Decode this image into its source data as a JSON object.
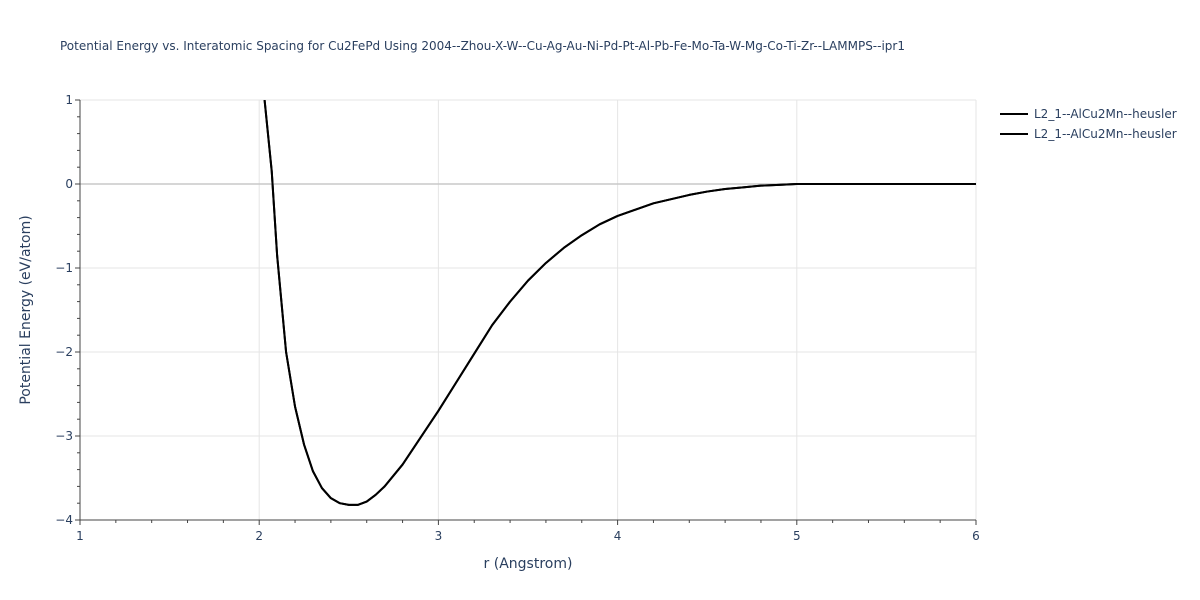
{
  "chart_data": {
    "type": "line",
    "title": "Potential Energy vs. Interatomic Spacing for Cu2FePd Using 2004--Zhou-X-W--Cu-Ag-Au-Ni-Pd-Pt-Al-Pb-Fe-Mo-Ta-W-Mg-Co-Ti-Zr--LAMMPS--ipr1",
    "xlabel": "r (Angstrom)",
    "ylabel": "Potential Energy (eV/atom)",
    "xlim": [
      1,
      6
    ],
    "ylim": [
      -4,
      1
    ],
    "x_ticks": [
      "1",
      "2",
      "3",
      "4",
      "5",
      "6"
    ],
    "y_ticks": [
      "1",
      "0",
      "−1",
      "−2",
      "−3",
      "−4"
    ],
    "x_tick_values": [
      1,
      2,
      3,
      4,
      5,
      6
    ],
    "y_tick_values": [
      1,
      0,
      -1,
      -2,
      -3,
      -4
    ],
    "grid": true,
    "legend_position": "top-right",
    "series": [
      {
        "name": "L2_1--AlCu2Mn--heusler",
        "color": "#000000",
        "x": [
          2.03,
          2.07,
          2.1,
          2.15,
          2.2,
          2.25,
          2.3,
          2.35,
          2.4,
          2.45,
          2.5,
          2.55,
          2.6,
          2.65,
          2.7,
          2.8,
          2.9,
          3.0,
          3.1,
          3.2,
          3.3,
          3.4,
          3.5,
          3.6,
          3.7,
          3.8,
          3.9,
          4.0,
          4.2,
          4.4,
          4.5,
          4.6,
          4.7,
          4.8,
          4.9,
          5.0,
          5.2,
          5.5,
          6.0
        ],
        "y": [
          1.0,
          0.15,
          -0.85,
          -2.0,
          -2.65,
          -3.1,
          -3.42,
          -3.62,
          -3.74,
          -3.8,
          -3.82,
          -3.82,
          -3.78,
          -3.7,
          -3.6,
          -3.34,
          -3.02,
          -2.7,
          -2.36,
          -2.02,
          -1.68,
          -1.4,
          -1.15,
          -0.94,
          -0.76,
          -0.61,
          -0.48,
          -0.38,
          -0.23,
          -0.13,
          -0.09,
          -0.06,
          -0.04,
          -0.02,
          -0.01,
          0.0,
          0.0,
          0.0,
          0.0
        ]
      },
      {
        "name": "L2_1--AlCu2Mn--heusler",
        "color": "#000000",
        "x": [
          2.03,
          2.07,
          2.1,
          2.15,
          2.2,
          2.25,
          2.3,
          2.35,
          2.4,
          2.45,
          2.5,
          2.55,
          2.6,
          2.65,
          2.7,
          2.8,
          2.9,
          3.0,
          3.1,
          3.2,
          3.3,
          3.4,
          3.5,
          3.6,
          3.7,
          3.8,
          3.9,
          4.0,
          4.2,
          4.4,
          4.5,
          4.6,
          4.7,
          4.8,
          4.9,
          5.0,
          5.2,
          5.5,
          6.0
        ],
        "y": [
          1.0,
          0.15,
          -0.85,
          -2.0,
          -2.65,
          -3.1,
          -3.42,
          -3.62,
          -3.74,
          -3.8,
          -3.82,
          -3.82,
          -3.78,
          -3.7,
          -3.6,
          -3.34,
          -3.02,
          -2.7,
          -2.36,
          -2.02,
          -1.68,
          -1.4,
          -1.15,
          -0.94,
          -0.76,
          -0.61,
          -0.48,
          -0.38,
          -0.23,
          -0.13,
          -0.09,
          -0.06,
          -0.04,
          -0.02,
          -0.01,
          0.0,
          0.0,
          0.0,
          0.0
        ]
      }
    ]
  }
}
